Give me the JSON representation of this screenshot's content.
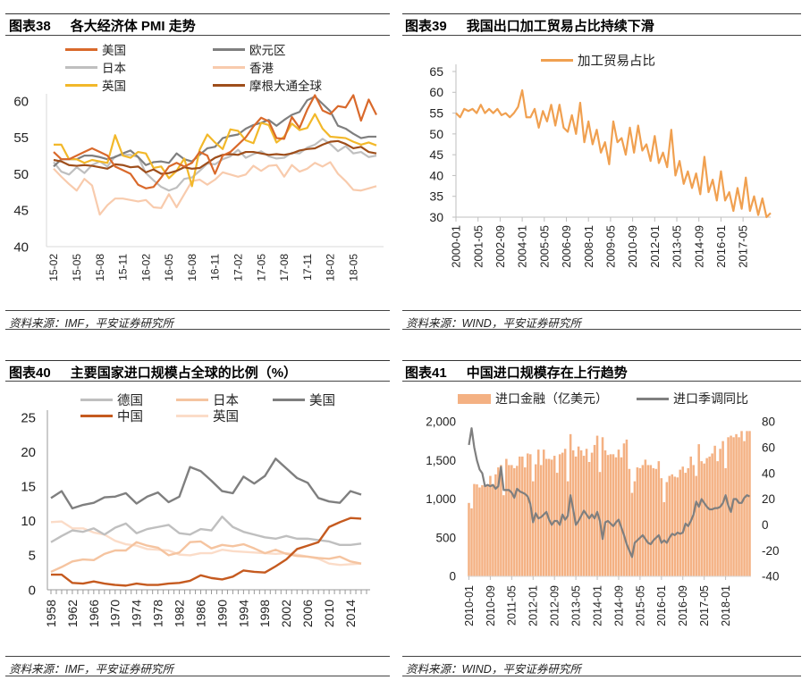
{
  "panels": [
    {
      "num": "图表38",
      "title": "各大经济体 PMI 走势",
      "source": "资料来源：IMF，平安证券研究所"
    },
    {
      "num": "图表39",
      "title": "我国出口加工贸易占比持续下滑",
      "source": "资料来源：WIND，平安证券研究所"
    },
    {
      "num": "图表40",
      "title": "主要国家进口规模占全球的比例（%）",
      "source": "资料来源：IMF，平安证券研究所"
    },
    {
      "num": "图表41",
      "title": "中国进口规模存在上行趋势",
      "source": "资料来源：WIND，平安证券研究所"
    }
  ],
  "chart_data": [
    {
      "type": "line",
      "ylim": [
        40,
        60
      ],
      "yticks": [
        "40",
        "45",
        "50",
        "55",
        "60"
      ],
      "x_range": [
        "15-02",
        "18-08"
      ],
      "xticks": [
        "15-02",
        "15-05",
        "15-08",
        "15-11",
        "16-02",
        "16-05",
        "16-08",
        "16-11",
        "17-02",
        "17-05",
        "17-08",
        "17-11",
        "18-02",
        "18-05"
      ],
      "legend": "top",
      "series": [
        {
          "name": "美国",
          "color": "#D9692B",
          "values": [
            53,
            52,
            52,
            52.5,
            53,
            53.5,
            53,
            52.5,
            51,
            50.5,
            50,
            48.5,
            48,
            48.2,
            49.5,
            51,
            51.5,
            51,
            51.5,
            53,
            52.5,
            50,
            52.5,
            53,
            54,
            55,
            56.5,
            57.7,
            57.2,
            54.9,
            54.8,
            57.8,
            56.3,
            58.8,
            60.8,
            58.7,
            58.2,
            59.3,
            59.1,
            60.8,
            57.3,
            60.2,
            58.1
          ]
        },
        {
          "name": "欧元区",
          "color": "#7F7F7F",
          "values": [
            51,
            52,
            52,
            52,
            52.5,
            52.5,
            52.3,
            52,
            52.3,
            52.8,
            53.2,
            52.3,
            51.2,
            51.6,
            51.7,
            51.5,
            52.8,
            52.0,
            51.7,
            52.6,
            53.5,
            53.7,
            54.9,
            55.2,
            55.4,
            56.2,
            56.7,
            57.0,
            57.4,
            56.6,
            57.4,
            58.1,
            58.5,
            60.1,
            60.6,
            59.6,
            58.6,
            56.6,
            56.2,
            55.5,
            54.9,
            55.1,
            55.1
          ]
        },
        {
          "name": "日本",
          "color": "#BFBFBF",
          "values": [
            51.6,
            50.3,
            49.9,
            50.9,
            50.1,
            51.2,
            51.7,
            51.0,
            52.4,
            52.6,
            52.6,
            52.3,
            50.1,
            49.1,
            48.2,
            47.7,
            48.1,
            49.3,
            49.5,
            50.4,
            51.4,
            51.3,
            52.0,
            52.4,
            53.3,
            52.2,
            52.7,
            53.1,
            52.4,
            52.1,
            52.2,
            52.9,
            52.8,
            53.6,
            54.0,
            54.8,
            54.1,
            53.1,
            53.8,
            52.8,
            53.0,
            52.3,
            52.5
          ]
        },
        {
          "name": "香港",
          "color": "#F8CBAD",
          "values": [
            50.7,
            49.6,
            48.6,
            47.7,
            49.3,
            48.4,
            44.4,
            45.7,
            46.6,
            46.6,
            46.4,
            46.2,
            46.4,
            45.4,
            45.3,
            47.2,
            45.4,
            47.2,
            49.0,
            49.2,
            48.5,
            49.2,
            50.2,
            49.9,
            49.6,
            49.9,
            51.1,
            50.4,
            51.1,
            51.2,
            49.6,
            51.2,
            50.3,
            50.7,
            51.5,
            51.0,
            51.6,
            50.0,
            49.0,
            47.8,
            47.7,
            48.0,
            48.3
          ]
        },
        {
          "name": "英国",
          "color": "#F2B82A",
          "values": [
            54,
            54,
            52,
            52,
            51.5,
            51.9,
            51.7,
            51.5,
            55.3,
            52.5,
            52.2,
            53,
            52.8,
            50.8,
            51,
            49.4,
            50.4,
            52.1,
            48.3,
            53.3,
            55.4,
            54.3,
            53.4,
            56.1,
            55.9,
            54.6,
            54.2,
            57,
            56.7,
            54.3,
            55.1,
            56.9,
            56,
            56.3,
            58.2,
            56.2,
            55.1,
            55,
            54.9,
            54.4,
            54.0,
            54.3,
            53.9
          ]
        },
        {
          "name": "摩根大通全球",
          "color": "#9E4E1B",
          "values": [
            51.9,
            51.7,
            51.2,
            51.1,
            51.2,
            51.1,
            50.9,
            50.7,
            51.3,
            51.2,
            50.9,
            51.0,
            50.2,
            50.6,
            50.0,
            50.1,
            50.4,
            50.9,
            50.7,
            50.8,
            51.5,
            52.2,
            52.6,
            52.7,
            52.6,
            53.0,
            53.0,
            52.8,
            52.6,
            52.7,
            52.6,
            52.8,
            53.2,
            53.4,
            53.5,
            54.0,
            54.4,
            54.5,
            54.1,
            53.5,
            53.7,
            53.0,
            52.8
          ]
        }
      ]
    },
    {
      "type": "line",
      "ylim": [
        30,
        65
      ],
      "yticks": [
        "30",
        "35",
        "40",
        "45",
        "50",
        "55",
        "60",
        "65"
      ],
      "x_range": [
        "2000-01",
        "2019-01"
      ],
      "x_sampling": "quarterly",
      "xticks": [
        "2000-01",
        "2001-05",
        "2002-09",
        "2004-01",
        "2005-05",
        "2006-09",
        "2008-01",
        "2009-05",
        "2010-09",
        "2012-01",
        "2013-05",
        "2014-09",
        "2016-01",
        "2017-05"
      ],
      "legend": "top",
      "series": [
        {
          "name": "加工贸易占比",
          "color": "#F0A050",
          "values": [
            55,
            54,
            56,
            55.5,
            56,
            55,
            57,
            55,
            56,
            55,
            56,
            54.5,
            55,
            54,
            55,
            56.5,
            60.5,
            54,
            54,
            56,
            51.5,
            55.5,
            53,
            57,
            52,
            57,
            51.5,
            50.5,
            54.5,
            50,
            57.5,
            48,
            53,
            47.5,
            51,
            45.5,
            48,
            42.7,
            53,
            48,
            49,
            45,
            51.5,
            45.5,
            52,
            46,
            47.5,
            43.5,
            49.5,
            43,
            45.5,
            42,
            51,
            40,
            43.5,
            38,
            41,
            37,
            40.5,
            35.5,
            44.5,
            36,
            39,
            34,
            41,
            34,
            36,
            31.5,
            37,
            32,
            39.5,
            31.5,
            35,
            30.5,
            34.5,
            30,
            31
          ]
        }
      ]
    },
    {
      "type": "line",
      "ylim": [
        0,
        25
      ],
      "yticks": [
        "0",
        "5",
        "10",
        "15",
        "20",
        "25"
      ],
      "x_range": [
        1958,
        2017
      ],
      "x_step_years": 2,
      "xticks": [
        "1958",
        "1962",
        "1966",
        "1970",
        "1974",
        "1978",
        "1982",
        "1986",
        "1990",
        "1994",
        "1998",
        "2002",
        "2006",
        "2010",
        "2014"
      ],
      "legend": "top",
      "series": [
        {
          "name": "德国",
          "color": "#BFBFBF",
          "values": [
            6.9,
            7.8,
            8.6,
            8.4,
            8.9,
            8.0,
            9.0,
            9.6,
            8.2,
            8.8,
            9.1,
            9.4,
            8.2,
            8.0,
            8.8,
            8.6,
            10.6,
            9.1,
            8.4,
            8.0,
            7.6,
            7.4,
            7.8,
            7.4,
            7.4,
            7.2,
            7.0,
            6.5,
            6.5,
            6.7
          ]
        },
        {
          "name": "日本",
          "color": "#F5C4A0",
          "values": [
            2.6,
            3.3,
            4.1,
            4.4,
            4.3,
            5.2,
            5.7,
            5.7,
            6.9,
            6.4,
            6.1,
            5.0,
            5.4,
            6.9,
            7.0,
            6.0,
            6.5,
            6.3,
            6.6,
            6.0,
            5.3,
            5.8,
            5.2,
            4.9,
            4.8,
            4.6,
            4.5,
            4.8,
            4.1,
            3.8
          ]
        },
        {
          "name": "美国",
          "color": "#7F7F7F",
          "values": [
            13.3,
            14.3,
            11.8,
            12.3,
            12.6,
            13.4,
            13.5,
            14.0,
            12.5,
            13.5,
            14.1,
            12.7,
            13.5,
            17.8,
            17.2,
            15.8,
            14.3,
            14.0,
            16.4,
            15.4,
            16.5,
            19.0,
            17.6,
            16.2,
            15.5,
            13.3,
            12.8,
            12.6,
            14.3,
            13.8
          ]
        },
        {
          "name": "中国",
          "color": "#C55A1F",
          "values": [
            2.2,
            2.2,
            1.0,
            0.9,
            1.2,
            0.9,
            0.7,
            0.6,
            0.9,
            0.7,
            0.7,
            0.9,
            1.0,
            1.3,
            2.1,
            1.7,
            1.5,
            1.9,
            2.8,
            2.6,
            2.5,
            3.4,
            4.4,
            5.9,
            6.4,
            6.9,
            9.1,
            9.8,
            10.4,
            10.3
          ]
        },
        {
          "name": "英国",
          "color": "#FBDCC8",
          "values": [
            9.8,
            9.9,
            8.9,
            8.9,
            8.3,
            8.0,
            7.1,
            6.6,
            6.4,
            5.9,
            5.8,
            5.7,
            5.1,
            5.0,
            5.3,
            5.3,
            5.8,
            5.6,
            5.5,
            5.4,
            5.3,
            5.2,
            5.3,
            5.1,
            4.8,
            4.5,
            3.8,
            3.6,
            3.7,
            3.8
          ]
        }
      ]
    },
    {
      "type": "bar+line",
      "ylim_left": [
        0,
        2000
      ],
      "yticks_left": [
        "0",
        "500",
        "1,000",
        "1,500",
        "2,000"
      ],
      "ylim_right": [
        -40,
        80
      ],
      "yticks_right": [
        "-40",
        "-20",
        "0",
        "20",
        "40",
        "60",
        "80"
      ],
      "x_range": [
        "2010-01",
        "2018-10"
      ],
      "xticks": [
        "2010-01",
        "2010-09",
        "2011-05",
        "2012-01",
        "2012-09",
        "2013-05",
        "2014-01",
        "2014-09",
        "2015-05",
        "2016-01",
        "2016-09",
        "2017-05",
        "2018-01"
      ],
      "legend": "top",
      "bars": {
        "name": "进口金融（亿美元）",
        "color": "#F4B183",
        "axis": "left",
        "values": [
          950,
          880,
          1195,
          1190,
          1150,
          1180,
          1180,
          1170,
          1300,
          1180,
          1320,
          1410,
          1440,
          1050,
          1520,
          1440,
          1440,
          1400,
          1430,
          1550,
          1550,
          1410,
          1590,
          1580,
          1230,
          1450,
          1640,
          1440,
          1640,
          1520,
          1520,
          1510,
          1560,
          1340,
          1580,
          1600,
          1650,
          1230,
          1840,
          1630,
          1550,
          1680,
          1630,
          1560,
          1650,
          1480,
          1600,
          1700,
          1820,
          1350,
          1800,
          1630,
          1570,
          1580,
          1580,
          1540,
          1640,
          1540,
          1720,
          1770,
          1390,
          1080,
          1230,
          1410,
          1400,
          1440,
          1510,
          1440,
          1440,
          1400,
          1390,
          1490,
          1270,
          960,
          1220,
          1300,
          1320,
          1290,
          1280,
          1380,
          1420,
          1340,
          1400,
          1550,
          1440,
          1300,
          1710,
          1490,
          1460,
          1530,
          1550,
          1590,
          1690,
          1490,
          1650,
          1750,
          1400,
          1800,
          1820,
          1800,
          1840,
          1800,
          1880,
          1750,
          1880,
          1880
        ]
      },
      "line": {
        "name": "进口季调同比",
        "color": "#7F7F7F",
        "axis": "right",
        "values": [
          62,
          75,
          60,
          50,
          43,
          40,
          30,
          31,
          30,
          31,
          28,
          30,
          45,
          27,
          27,
          27,
          25,
          21,
          28,
          26,
          25,
          24,
          22,
          16,
          2,
          9,
          5,
          6,
          8,
          10,
          4,
          0,
          3,
          3,
          0,
          8,
          4,
          7,
          23,
          12,
          0,
          3,
          7,
          11,
          8,
          5,
          8,
          5,
          10,
          3,
          -11,
          2,
          3,
          1,
          -1,
          2,
          4,
          -2,
          -8,
          -15,
          -20,
          -25,
          -14,
          -12,
          -10,
          -8,
          -11,
          -14,
          -15,
          -12,
          -10,
          -8,
          -14,
          -12,
          -14,
          -10,
          -7,
          -8,
          -6,
          -7,
          -6,
          1,
          -1,
          3,
          8,
          18,
          14,
          20,
          17,
          14,
          12,
          12,
          13,
          13,
          14,
          17,
          23,
          15,
          10,
          20,
          20,
          17,
          17,
          21,
          23,
          22
        ]
      }
    }
  ]
}
